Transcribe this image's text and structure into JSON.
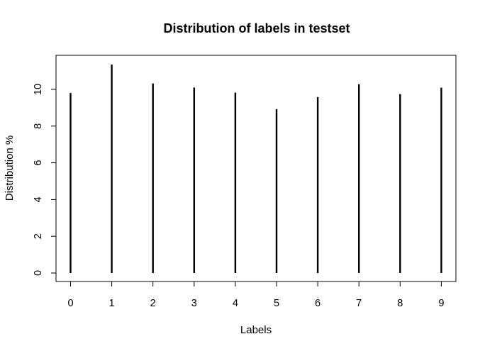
{
  "chart_data": {
    "type": "bar",
    "style": "histogram-lines",
    "title": "Distribution of labels in testset",
    "xlabel": "Labels",
    "ylabel": "Distribution %",
    "categories": [
      "0",
      "1",
      "2",
      "3",
      "4",
      "5",
      "6",
      "7",
      "8",
      "9"
    ],
    "values": [
      9.8,
      11.35,
      10.32,
      10.1,
      9.82,
      8.92,
      9.58,
      10.28,
      9.74,
      10.09
    ],
    "y_ticks": [
      "0",
      "2",
      "4",
      "6",
      "8",
      "10"
    ],
    "ylim": [
      0,
      11.35
    ],
    "grid": false,
    "legend": false,
    "line_color": "#000000"
  }
}
